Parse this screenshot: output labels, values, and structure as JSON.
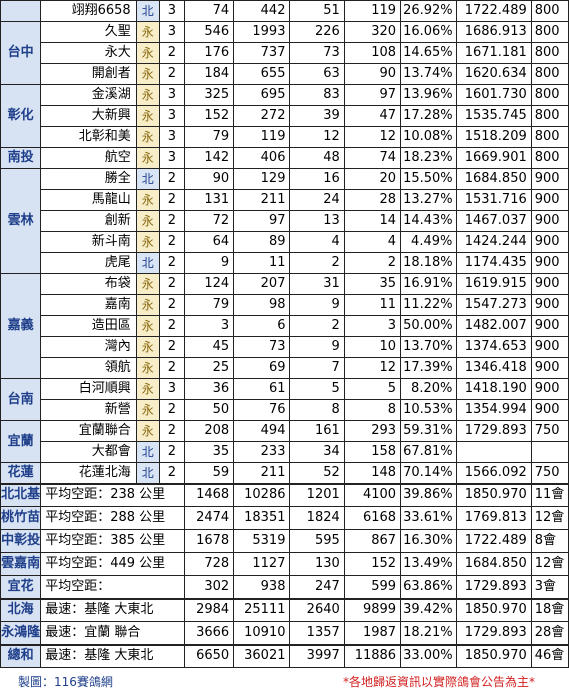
{
  "regions": [
    {
      "region": "",
      "rows": [
        {
          "name": "翊翔6658",
          "type": "北",
          "c3": "3",
          "c4": "74",
          "c5": "442",
          "c6": "51",
          "c7": "119",
          "pct": "26.92%",
          "speed": "1722.489",
          "dist": "800"
        }
      ]
    },
    {
      "region": "台中",
      "rows": [
        {
          "name": "久聖",
          "type": "永",
          "c3": "3",
          "c4": "546",
          "c5": "1993",
          "c6": "226",
          "c7": "320",
          "pct": "16.06%",
          "speed": "1686.913",
          "dist": "800"
        },
        {
          "name": "永大",
          "type": "永",
          "c3": "2",
          "c4": "176",
          "c5": "737",
          "c6": "73",
          "c7": "108",
          "pct": "14.65%",
          "speed": "1671.181",
          "dist": "800"
        },
        {
          "name": "開創者",
          "type": "永",
          "c3": "2",
          "c4": "184",
          "c5": "655",
          "c6": "63",
          "c7": "90",
          "pct": "13.74%",
          "speed": "1620.634",
          "dist": "800"
        }
      ]
    },
    {
      "region": "彰化",
      "rows": [
        {
          "name": "金溪湖",
          "type": "永",
          "c3": "3",
          "c4": "325",
          "c5": "695",
          "c6": "83",
          "c7": "97",
          "pct": "13.96%",
          "speed": "1601.730",
          "dist": "800"
        },
        {
          "name": "大新興",
          "type": "永",
          "c3": "3",
          "c4": "152",
          "c5": "272",
          "c6": "39",
          "c7": "47",
          "pct": "17.28%",
          "speed": "1535.745",
          "dist": "800"
        },
        {
          "name": "北彰和美",
          "type": "永",
          "c3": "3",
          "c4": "79",
          "c5": "119",
          "c6": "12",
          "c7": "12",
          "pct": "10.08%",
          "speed": "1518.209",
          "dist": "800"
        }
      ]
    },
    {
      "region": "南投",
      "rows": [
        {
          "name": "航空",
          "type": "永",
          "c3": "3",
          "c4": "142",
          "c5": "406",
          "c6": "48",
          "c7": "74",
          "pct": "18.23%",
          "speed": "1669.901",
          "dist": "800"
        }
      ]
    },
    {
      "region": "雲林",
      "rows": [
        {
          "name": "勝全",
          "type": "北",
          "c3": "2",
          "c4": "90",
          "c5": "129",
          "c6": "16",
          "c7": "20",
          "pct": "15.50%",
          "speed": "1684.850",
          "dist": "900"
        },
        {
          "name": "馬龍山",
          "type": "永",
          "c3": "2",
          "c4": "131",
          "c5": "211",
          "c6": "24",
          "c7": "28",
          "pct": "13.27%",
          "speed": "1531.716",
          "dist": "900"
        },
        {
          "name": "創新",
          "type": "永",
          "c3": "2",
          "c4": "72",
          "c5": "97",
          "c6": "13",
          "c7": "14",
          "pct": "14.43%",
          "speed": "1467.037",
          "dist": "900"
        },
        {
          "name": "新斗南",
          "type": "永",
          "c3": "2",
          "c4": "64",
          "c5": "89",
          "c6": "4",
          "c7": "4",
          "pct": "4.49%",
          "speed": "1424.244",
          "dist": "900"
        },
        {
          "name": "虎尾",
          "type": "北",
          "c3": "2",
          "c4": "9",
          "c5": "11",
          "c6": "2",
          "c7": "2",
          "pct": "18.18%",
          "speed": "1174.435",
          "dist": "900"
        }
      ]
    },
    {
      "region": "嘉義",
      "rows": [
        {
          "name": "布袋",
          "type": "永",
          "c3": "2",
          "c4": "124",
          "c5": "207",
          "c6": "31",
          "c7": "35",
          "pct": "16.91%",
          "speed": "1619.915",
          "dist": "900"
        },
        {
          "name": "嘉南",
          "type": "永",
          "c3": "2",
          "c4": "79",
          "c5": "98",
          "c6": "9",
          "c7": "11",
          "pct": "11.22%",
          "speed": "1547.273",
          "dist": "900"
        },
        {
          "name": "造田區",
          "type": "永",
          "c3": "2",
          "c4": "3",
          "c5": "6",
          "c6": "2",
          "c7": "3",
          "pct": "50.00%",
          "speed": "1482.007",
          "dist": "900"
        },
        {
          "name": "灣內",
          "type": "永",
          "c3": "2",
          "c4": "45",
          "c5": "73",
          "c6": "9",
          "c7": "10",
          "pct": "13.70%",
          "speed": "1374.653",
          "dist": "900"
        },
        {
          "name": "領航",
          "type": "永",
          "c3": "2",
          "c4": "25",
          "c5": "69",
          "c6": "7",
          "c7": "12",
          "pct": "17.39%",
          "speed": "1346.418",
          "dist": "900"
        }
      ]
    },
    {
      "region": "台南",
      "rows": [
        {
          "name": "白河順興",
          "type": "永",
          "c3": "3",
          "c4": "36",
          "c5": "61",
          "c6": "5",
          "c7": "5",
          "pct": "8.20%",
          "speed": "1418.190",
          "dist": "900"
        },
        {
          "name": "新營",
          "type": "永",
          "c3": "2",
          "c4": "50",
          "c5": "76",
          "c6": "8",
          "c7": "8",
          "pct": "10.53%",
          "speed": "1354.994",
          "dist": "900"
        }
      ]
    },
    {
      "region": "宜蘭",
      "rows": [
        {
          "name": "宜蘭聯合",
          "type": "永",
          "c3": "2",
          "c4": "208",
          "c5": "494",
          "c6": "161",
          "c7": "293",
          "pct": "59.31%",
          "speed": "1729.893",
          "dist": "750"
        },
        {
          "name": "大都會",
          "type": "北",
          "c3": "2",
          "c4": "35",
          "c5": "233",
          "c6": "34",
          "c7": "158",
          "pct": "67.81%",
          "speed": "",
          "dist": ""
        }
      ]
    },
    {
      "region": "花蓮",
      "rows": [
        {
          "name": "花蓮北海",
          "type": "北",
          "c3": "2",
          "c4": "59",
          "c5": "211",
          "c6": "52",
          "c7": "148",
          "pct": "70.14%",
          "speed": "1566.092",
          "dist": "750"
        }
      ]
    }
  ],
  "summary": [
    {
      "label": "北北基",
      "desc": "平均空距：238 公里",
      "c4": "1468",
      "c5": "10286",
      "c6": "1201",
      "c7": "4100",
      "pct": "39.86%",
      "speed": "1850.970",
      "count": "11會"
    },
    {
      "label": "桃竹苗",
      "desc": "平均空距：288 公里",
      "c4": "2474",
      "c5": "18351",
      "c6": "1824",
      "c7": "6168",
      "pct": "33.61%",
      "speed": "1769.813",
      "count": "12會"
    },
    {
      "label": "中彰投",
      "desc": "平均空距：385 公里",
      "c4": "1678",
      "c5": "5319",
      "c6": "595",
      "c7": "867",
      "pct": "16.30%",
      "speed": "1722.489",
      "count": "8會"
    },
    {
      "label": "雲嘉南",
      "desc": "平均空距：449 公里",
      "c4": "728",
      "c5": "1127",
      "c6": "130",
      "c7": "152",
      "pct": "13.49%",
      "speed": "1684.850",
      "count": "12會"
    },
    {
      "label": "宜花",
      "desc": "平均空距：",
      "c4": "302",
      "c5": "938",
      "c6": "247",
      "c7": "599",
      "pct": "63.86%",
      "speed": "1729.893",
      "count": "3會"
    },
    {
      "label": "北海",
      "desc": "最速：基隆 大東北",
      "c4": "2984",
      "c5": "25111",
      "c6": "2640",
      "c7": "9899",
      "pct": "39.42%",
      "speed": "1850.970",
      "count": "18會"
    },
    {
      "label": "永鴻隆",
      "desc": "最速：宜蘭 聯合",
      "c4": "3666",
      "c5": "10910",
      "c6": "1357",
      "c7": "1987",
      "pct": "18.21%",
      "speed": "1729.893",
      "count": "28會"
    },
    {
      "label": "總和",
      "desc": "最速：基隆 大東北",
      "c4": "6650",
      "c5": "36021",
      "c6": "3997",
      "c7": "11886",
      "pct": "33.00%",
      "speed": "1850.970",
      "count": "46會"
    }
  ],
  "footer": {
    "credit": "製圖：116賽鴿網",
    "notice": "*各地歸返資訊以實際鴿會公告為主*"
  },
  "colors": {
    "region_bg": "#d7e3f3",
    "region_text": "#1f3f8a",
    "yong_bg": "#f7edc8",
    "bei_bg": "#d9e5f5",
    "notice": "#d21f1f"
  }
}
